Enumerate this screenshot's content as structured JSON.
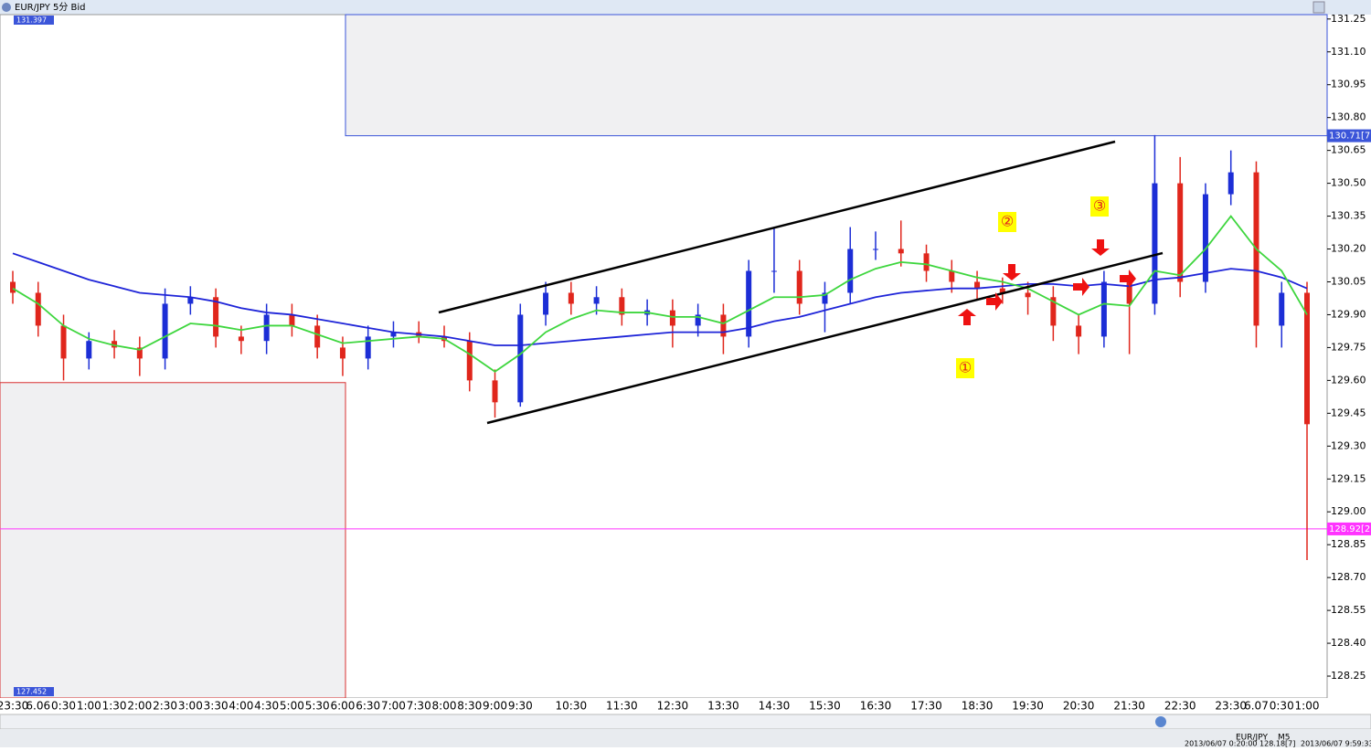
{
  "window": {
    "title": "EUR/JPY 5分 Bid"
  },
  "chart_data": {
    "type": "candlestick",
    "categories": [
      "23:30",
      "6.06",
      "0:30",
      "1:00",
      "1:30",
      "2:00",
      "2:30",
      "3:00",
      "3:30",
      "4:00",
      "4:30",
      "5:00",
      "5:30",
      "6:00",
      "6:30",
      "7:00",
      "7:30",
      "8:00",
      "8:30",
      "9:00",
      "9:30",
      null,
      "10:30",
      null,
      "11:30",
      null,
      "12:30",
      null,
      "13:30",
      null,
      "14:30",
      null,
      "15:30",
      null,
      "16:30",
      null,
      "17:30",
      null,
      "18:30",
      null,
      "19:30",
      null,
      "20:30",
      null,
      "21:30",
      null,
      "22:30",
      null,
      "23:30",
      "6.07",
      "0:30",
      "1:00"
    ],
    "open": [
      130.05,
      130.0,
      129.85,
      129.7,
      129.78,
      129.75,
      129.7,
      129.95,
      129.98,
      129.8,
      129.78,
      129.9,
      129.85,
      129.75,
      129.7,
      129.8,
      129.82,
      129.8,
      129.78,
      129.6,
      129.5,
      129.9,
      130.0,
      129.95,
      129.98,
      129.9,
      129.92,
      129.85,
      129.9,
      129.8,
      130.1,
      130.1,
      129.95,
      130.0,
      130.2,
      130.2,
      130.18,
      130.1,
      130.05,
      130.02,
      130.0,
      129.98,
      129.85,
      129.8,
      130.05,
      129.95,
      130.5,
      130.05,
      130.45,
      130.55,
      129.85,
      130.0
    ],
    "high": [
      130.1,
      130.05,
      129.9,
      129.82,
      129.83,
      129.8,
      130.02,
      130.03,
      130.02,
      129.85,
      129.95,
      129.95,
      129.9,
      129.8,
      129.85,
      129.87,
      129.87,
      129.85,
      129.82,
      129.65,
      129.95,
      130.05,
      130.05,
      130.03,
      130.02,
      129.97,
      129.97,
      129.95,
      129.95,
      130.15,
      130.3,
      130.15,
      130.05,
      130.3,
      130.28,
      130.33,
      130.22,
      130.15,
      130.1,
      130.07,
      130.05,
      130.03,
      129.9,
      130.1,
      130.1,
      130.72,
      130.62,
      130.5,
      130.65,
      130.6,
      130.05,
      130.05
    ],
    "low": [
      129.95,
      129.8,
      129.6,
      129.65,
      129.7,
      129.62,
      129.65,
      129.9,
      129.75,
      129.72,
      129.72,
      129.8,
      129.7,
      129.62,
      129.65,
      129.75,
      129.77,
      129.75,
      129.55,
      129.43,
      129.48,
      129.85,
      129.9,
      129.9,
      129.85,
      129.85,
      129.75,
      129.8,
      129.72,
      129.75,
      130.0,
      129.9,
      129.82,
      129.95,
      130.15,
      130.12,
      130.05,
      130.0,
      129.97,
      129.95,
      129.9,
      129.78,
      129.72,
      129.75,
      129.72,
      129.9,
      129.98,
      130.0,
      130.4,
      129.75,
      129.75,
      128.78
    ],
    "close": [
      130.0,
      129.85,
      129.7,
      129.78,
      129.75,
      129.7,
      129.95,
      129.98,
      129.8,
      129.78,
      129.9,
      129.85,
      129.75,
      129.7,
      129.8,
      129.82,
      129.8,
      129.78,
      129.6,
      129.5,
      129.9,
      130.0,
      129.95,
      129.98,
      129.9,
      129.92,
      129.85,
      129.9,
      129.8,
      130.1,
      130.1,
      129.95,
      130.0,
      130.2,
      130.2,
      130.18,
      130.1,
      130.05,
      130.02,
      130.0,
      129.98,
      129.85,
      129.8,
      130.05,
      129.95,
      130.5,
      130.05,
      130.45,
      130.55,
      129.85,
      130.0,
      129.4
    ],
    "up_color": "#1c2ed6",
    "down_color": "#e0261c",
    "moving_averages": [
      {
        "color": "#1e24d8",
        "values": [
          130.18,
          130.14,
          130.1,
          130.06,
          130.03,
          130.0,
          129.99,
          129.98,
          129.96,
          129.93,
          129.91,
          129.9,
          129.88,
          129.86,
          129.84,
          129.82,
          129.81,
          129.8,
          129.78,
          129.76,
          129.76,
          129.77,
          129.78,
          129.79,
          129.8,
          129.81,
          129.82,
          129.82,
          129.82,
          129.84,
          129.87,
          129.89,
          129.92,
          129.95,
          129.98,
          130.0,
          130.01,
          130.02,
          130.02,
          130.03,
          130.04,
          130.04,
          130.03,
          130.04,
          130.03,
          130.06,
          130.07,
          130.09,
          130.11,
          130.1,
          130.07,
          130.02
        ]
      },
      {
        "color": "#3ed63e",
        "values": [
          130.02,
          129.95,
          129.85,
          129.79,
          129.76,
          129.74,
          129.8,
          129.86,
          129.85,
          129.83,
          129.85,
          129.85,
          129.81,
          129.77,
          129.78,
          129.79,
          129.8,
          129.79,
          129.72,
          129.64,
          129.72,
          129.82,
          129.88,
          129.92,
          129.91,
          129.91,
          129.89,
          129.89,
          129.86,
          129.92,
          129.98,
          129.98,
          129.99,
          130.06,
          130.11,
          130.14,
          130.13,
          130.1,
          130.07,
          130.05,
          130.02,
          129.96,
          129.9,
          129.95,
          129.94,
          130.1,
          130.08,
          130.2,
          130.35,
          130.2,
          130.1,
          129.9
        ]
      }
    ],
    "ylim": [
      128.15,
      131.27
    ],
    "yticks": [
      131.25,
      {
        "value": 131.1,
        "label": "131.10"
      },
      130.95,
      {
        "value": 130.8,
        "label": "130.80"
      },
      130.65,
      {
        "value": 130.5,
        "label": "130.50"
      },
      130.35,
      {
        "value": 130.2,
        "label": "130.20"
      },
      130.05,
      {
        "value": 129.9,
        "label": "129.90"
      },
      129.75,
      {
        "value": 129.6,
        "label": "129.60"
      },
      129.45,
      {
        "value": 129.3,
        "label": "129.30"
      },
      129.15,
      {
        "value": 129,
        "label": "129.00"
      },
      128.85,
      {
        "value": 128.7,
        "label": "128.70"
      },
      128.55,
      {
        "value": 128.4,
        "label": "128.40"
      },
      128.25
    ],
    "zones": [
      {
        "high": 131.27,
        "low": 130.717,
        "color": "#3b55d9"
      },
      {
        "high": 129.59,
        "low": 128.15,
        "color": "#d83030"
      }
    ],
    "current_price": 128.922,
    "current_color": "#ff33ff",
    "price_tags": [
      {
        "value": 130.717,
        "label": "130.71[7"
      },
      {
        "value": 128.922,
        "label": "128.92[2"
      }
    ],
    "range_labels": [
      "131.397",
      "127.452"
    ],
    "annotations": [
      "①",
      "②",
      "③"
    ]
  },
  "status_bar": {
    "symbol": "EUR/JPY",
    "period": "M5",
    "bar_info": "2013/06/07 0:20:00  128.18[7]",
    "time": "2013/06/07 9:59:33"
  }
}
